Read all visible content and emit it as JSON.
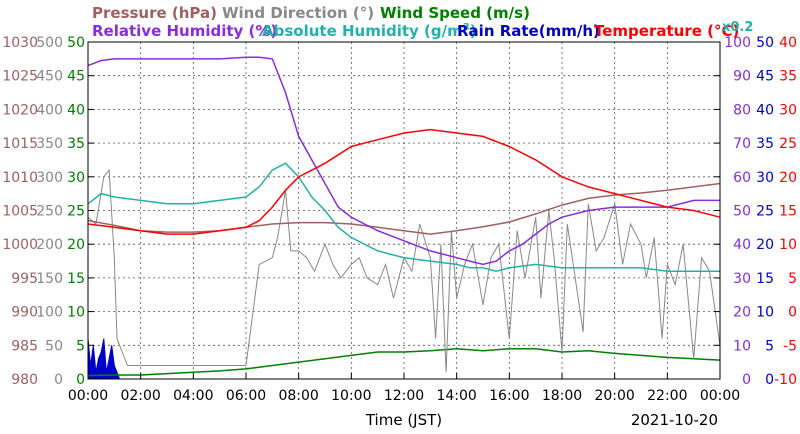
{
  "chart_data": {
    "type": "line",
    "legend": {
      "row1": [
        {
          "label": "Pressure (hPa)",
          "color": "#a06060"
        },
        {
          "label": "Wind Direction (°)",
          "color": "#888888"
        },
        {
          "label": "Wind Speed (m/s)",
          "color": "#008000"
        }
      ],
      "row2": [
        {
          "label": "Relative Humidity (%)",
          "color": "#8a2be2"
        },
        {
          "label": "Absolute Humidity (g/m",
          "color": "#20b2aa"
        },
        {
          "label": "Rain Rate(mm/h)",
          "color": "#0000cc"
        },
        {
          "label": "Temperature (°C)",
          "color": "#ff0000"
        }
      ],
      "abs_hum_sup": "3",
      "abs_hum_close": ")",
      "rain_scale": "x0.2"
    },
    "xlabel": "Time (JST)",
    "date": "2021-10-20",
    "x_ticks": [
      "00:00",
      "02:00",
      "04:00",
      "06:00",
      "08:00",
      "10:00",
      "12:00",
      "14:00",
      "16:00",
      "18:00",
      "20:00",
      "22:00",
      "00:00"
    ],
    "axes": {
      "pressure": {
        "ticks": [
          "1030",
          "1025",
          "1020",
          "1015",
          "1010",
          "1005",
          "1000",
          "995",
          "990",
          "985",
          "980"
        ],
        "color": "#a06060",
        "range": [
          980,
          1030
        ]
      },
      "wind_dir": {
        "ticks": [
          "500",
          "450",
          "400",
          "350",
          "300",
          "250",
          "200",
          "150",
          "100",
          "50",
          "0"
        ],
        "color": "#888888",
        "range": [
          0,
          500
        ]
      },
      "wind_speed": {
        "ticks": [
          "50",
          "45",
          "40",
          "35",
          "30",
          "25",
          "20",
          "15",
          "10",
          "5",
          "0"
        ],
        "color": "#008000",
        "range": [
          0,
          50
        ]
      },
      "humidity": {
        "ticks": [
          "100",
          "90",
          "80",
          "70",
          "60",
          "50",
          "40",
          "30",
          "20",
          "10",
          "0"
        ],
        "color": "#8a2be2",
        "range": [
          0,
          100
        ]
      },
      "rain": {
        "ticks": [
          "50",
          "45",
          "40",
          "35",
          "30",
          "25",
          "20",
          "15",
          "10",
          "5",
          "0"
        ],
        "color": "#0000cc",
        "range": [
          0,
          50
        ]
      },
      "temperature": {
        "ticks": [
          "40",
          "35",
          "30",
          "25",
          "20",
          "15",
          "10",
          "5",
          "0",
          "-5",
          "-10"
        ],
        "color": "#ff0000",
        "range": [
          -10,
          40
        ]
      }
    },
    "x_range": [
      0,
      24
    ],
    "series": [
      {
        "name": "Pressure (hPa)",
        "axis": "pressure",
        "color": "#a06060",
        "x": [
          0,
          1,
          2,
          3,
          4,
          5,
          6,
          7,
          8,
          9,
          10,
          11,
          12,
          13,
          14,
          15,
          16,
          17,
          18,
          19,
          20,
          21,
          22,
          23,
          24
        ],
        "y": [
          1003.5,
          1002.8,
          1002.0,
          1001.8,
          1001.8,
          1002.0,
          1002.5,
          1003.0,
          1003.2,
          1003.2,
          1003.0,
          1002.5,
          1002.0,
          1001.5,
          1002.0,
          1002.6,
          1003.3,
          1004.5,
          1005.8,
          1006.8,
          1007.3,
          1007.6,
          1008.0,
          1008.5,
          1009.0
        ]
      },
      {
        "name": "Relative Humidity (%)",
        "axis": "humidity",
        "color": "#8a2be2",
        "x": [
          0,
          0.5,
          1,
          2,
          3,
          4,
          5,
          6,
          6.5,
          7,
          7.5,
          8,
          8.5,
          9,
          9.5,
          10,
          10.5,
          11,
          12,
          13,
          14,
          14.5,
          15,
          15.5,
          16,
          16.5,
          17,
          17.5,
          18,
          19,
          20,
          21,
          22,
          23,
          24
        ],
        "y": [
          93,
          94.5,
          95,
          95,
          95,
          95,
          95,
          95.5,
          95.5,
          95,
          85,
          72,
          65,
          58,
          51,
          48,
          46,
          44,
          41,
          38,
          36,
          35,
          34,
          35,
          38,
          40,
          43,
          46,
          48,
          50,
          51,
          51,
          51,
          53,
          53
        ]
      },
      {
        "name": "Absolute Humidity (g/m3)",
        "axis": "wind_speed",
        "color": "#20b2aa",
        "x": [
          0,
          0.5,
          1,
          2,
          3,
          4,
          5,
          6,
          6.5,
          7,
          7.5,
          8,
          8.5,
          9,
          9.5,
          10,
          10.5,
          11,
          12,
          13,
          14,
          14.5,
          15,
          15.5,
          16,
          17,
          18,
          19,
          20,
          21,
          22,
          23,
          24
        ],
        "y": [
          26,
          27.5,
          27,
          26.5,
          26,
          26,
          26.5,
          27,
          28.5,
          31,
          32,
          30,
          27,
          25,
          22.5,
          21,
          20,
          19,
          18,
          17.5,
          17,
          16.5,
          16.5,
          16,
          16.5,
          17,
          16.5,
          16.5,
          16.5,
          16.5,
          16,
          16,
          16
        ]
      },
      {
        "name": "Temperature (°C)",
        "axis": "temperature",
        "color": "#ff0000",
        "x": [
          0,
          1,
          2,
          3,
          4,
          5,
          6,
          6.5,
          7,
          7.5,
          8,
          9,
          10,
          11,
          12,
          13,
          14,
          15,
          16,
          17,
          18,
          19,
          20,
          21,
          22,
          23,
          24
        ],
        "y": [
          13,
          12.5,
          12,
          11.5,
          11.5,
          12,
          12.5,
          13.5,
          15.5,
          18,
          20,
          22,
          24.5,
          25.5,
          26.5,
          27,
          26.5,
          26,
          24.5,
          22.5,
          20,
          18.5,
          17.5,
          16.5,
          15.5,
          15,
          14
        ]
      },
      {
        "name": "Wind Direction (°)",
        "axis": "wind_dir",
        "color": "#888888",
        "x": [
          0,
          0.3,
          0.6,
          0.8,
          1,
          1.1,
          1.3,
          1.5,
          2,
          3,
          4,
          5,
          6,
          6.5,
          7,
          7.2,
          7.5,
          7.7,
          8,
          8.3,
          8.6,
          9,
          9.3,
          9.6,
          10,
          10.3,
          10.6,
          11,
          11.3,
          11.6,
          12,
          12.3,
          12.6,
          13,
          13.2,
          13.4,
          13.6,
          13.8,
          14,
          14.3,
          14.6,
          15,
          15.3,
          15.6,
          16,
          16.3,
          16.6,
          17,
          17.2,
          17.5,
          17.7,
          18,
          18.2,
          18.5,
          18.8,
          19,
          19.3,
          19.6,
          20,
          20.3,
          20.6,
          21,
          21.2,
          21.5,
          21.8,
          22,
          22.3,
          22.6,
          23,
          23.3,
          23.6,
          24
        ],
        "y": [
          240,
          230,
          300,
          310,
          180,
          60,
          40,
          20,
          20,
          20,
          20,
          20,
          20,
          170,
          180,
          210,
          280,
          190,
          190,
          180,
          160,
          200,
          170,
          150,
          170,
          180,
          150,
          140,
          170,
          120,
          180,
          160,
          230,
          180,
          60,
          200,
          10,
          220,
          120,
          170,
          200,
          110,
          180,
          200,
          60,
          220,
          150,
          240,
          120,
          250,
          180,
          40,
          230,
          150,
          70,
          260,
          190,
          210,
          260,
          170,
          230,
          200,
          150,
          210,
          60,
          170,
          140,
          200,
          30,
          180,
          160,
          50
        ]
      },
      {
        "name": "Wind Speed (m/s)",
        "axis": "wind_speed",
        "color": "#008000",
        "x": [
          0,
          1,
          2,
          3,
          4,
          5,
          6,
          7,
          8,
          9,
          10,
          11,
          12,
          13,
          14,
          15,
          16,
          17,
          18,
          19,
          20,
          21,
          22,
          23,
          24
        ],
        "y": [
          0.5,
          0.6,
          0.6,
          0.8,
          1,
          1.2,
          1.5,
          2,
          2.5,
          3,
          3.5,
          4,
          4,
          4.2,
          4.5,
          4.2,
          4.5,
          4.5,
          4,
          4.2,
          3.8,
          3.5,
          3.2,
          3,
          2.8
        ]
      },
      {
        "name": "Rain Rate(mm/h)",
        "axis": "rain",
        "color": "#0000cc",
        "x": [
          0,
          0.1,
          0.2,
          0.3,
          0.4,
          0.5,
          0.6,
          0.7,
          0.8,
          0.9,
          1,
          1.1,
          1.2
        ],
        "y": [
          6,
          2,
          5,
          1,
          3,
          4,
          6,
          1,
          3,
          5,
          2,
          1,
          0
        ]
      }
    ]
  }
}
